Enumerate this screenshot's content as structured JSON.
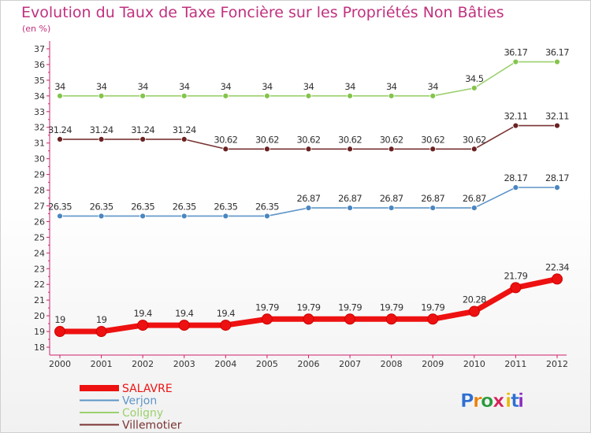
{
  "title": "Evolution du Taux de Taxe Foncière sur les Propriétés Non Bâties",
  "unit_label": "(en %)",
  "brand": "Proxiti",
  "chart_data": {
    "type": "line",
    "title": "Evolution du Taux de Taxe Foncière sur les Propriétés Non Bâties",
    "ylabel": "(en %)",
    "xlabel": "",
    "ylim": [
      18,
      37
    ],
    "grid": false,
    "categories": [
      "2000",
      "2001",
      "2002",
      "2003",
      "2004",
      "2005",
      "2006",
      "2007",
      "2008",
      "2009",
      "2010",
      "2011",
      "2012"
    ],
    "series": [
      {
        "name": "SALAVRE",
        "color": "#ee1111",
        "highlight": true,
        "values": [
          19,
          19,
          19.4,
          19.4,
          19.4,
          19.79,
          19.79,
          19.79,
          19.79,
          19.79,
          20.28,
          21.79,
          22.34
        ],
        "labels": [
          "19",
          "19",
          "19.4",
          "19.4",
          "19.4",
          "19.79",
          "19.79",
          "19.79",
          "19.79",
          "19.79",
          "20.28",
          "21.79",
          "22.34"
        ]
      },
      {
        "name": "Verjon",
        "color": "#5e95c8",
        "marker": "#4a86c0",
        "values": [
          26.35,
          26.35,
          26.35,
          26.35,
          26.35,
          26.35,
          26.87,
          26.87,
          26.87,
          26.87,
          26.87,
          28.17,
          28.17
        ],
        "labels": [
          "26.35",
          "26.35",
          "26.35",
          "26.35",
          "26.35",
          "26.35",
          "26.87",
          "26.87",
          "26.87",
          "26.87",
          "26.87",
          "28.17",
          "28.17"
        ]
      },
      {
        "name": "Coligny",
        "color": "#9cd06e",
        "marker": "#84c44c",
        "values": [
          34,
          34,
          34,
          34,
          34,
          34,
          34,
          34,
          34,
          34,
          34.5,
          36.17,
          36.17
        ],
        "labels": [
          "34",
          "34",
          "34",
          "34",
          "34",
          "34",
          "34",
          "34",
          "34",
          "34",
          "34.5",
          "36.17",
          "36.17"
        ]
      },
      {
        "name": "Villemotier",
        "color": "#7a3333",
        "marker": "#6b2222",
        "values": [
          31.24,
          31.24,
          31.24,
          31.24,
          30.62,
          30.62,
          30.62,
          30.62,
          30.62,
          30.62,
          30.62,
          32.11,
          32.11
        ],
        "labels": [
          "31.24",
          "31.24",
          "31.24",
          "31.24",
          "30.62",
          "30.62",
          "30.62",
          "30.62",
          "30.62",
          "30.62",
          "30.62",
          "32.11",
          "32.11"
        ]
      }
    ],
    "legend": [
      "SALAVRE",
      "Verjon",
      "Coligny",
      "Villemotier"
    ],
    "legend_position": "bottom-left",
    "axis_color": "#d0206a",
    "label_color": "#333333"
  }
}
